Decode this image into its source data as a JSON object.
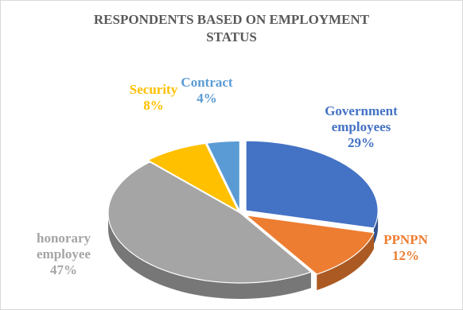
{
  "chart_data": {
    "type": "pie",
    "title_lines": [
      "RESPONDENTS BASED ON EMPLOYMENT",
      "STATUS"
    ],
    "slices": [
      {
        "label_lines": [
          "Government",
          "employees"
        ],
        "value_label": "29%",
        "value": 29,
        "color": "#4472c4",
        "label_color": "#4472c4"
      },
      {
        "label_lines": [
          "PPNPN"
        ],
        "value_label": "12%",
        "value": 12,
        "color": "#ed7d31",
        "label_color": "#ed7d31"
      },
      {
        "label_lines": [
          "honorary",
          "employee"
        ],
        "value_label": "47%",
        "value": 47,
        "color": "#a5a5a5",
        "label_color": "#a5a5a5"
      },
      {
        "label_lines": [
          "Security"
        ],
        "value_label": "8%",
        "value": 8,
        "color": "#ffc000",
        "label_color": "#ffc000"
      },
      {
        "label_lines": [
          "Contract"
        ],
        "value_label": "4%",
        "value": 4,
        "color": "#5b9bd5",
        "label_color": "#5b9bd5"
      }
    ],
    "legend": "none",
    "exploded": true,
    "style": "3d"
  }
}
